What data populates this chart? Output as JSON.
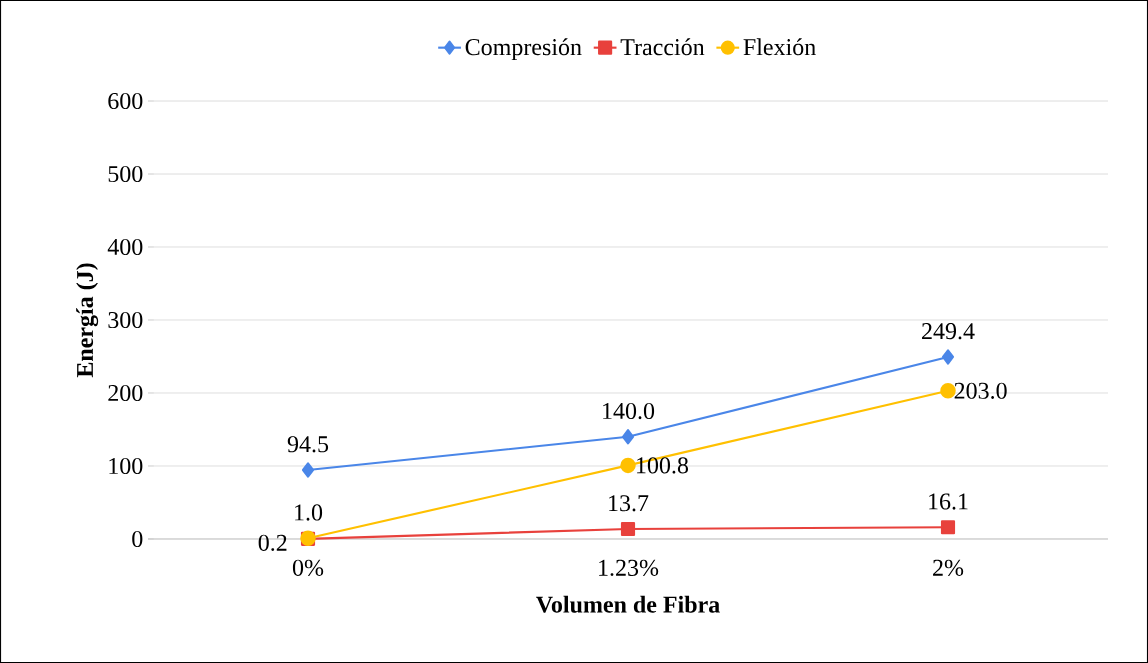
{
  "chart_data": {
    "type": "line",
    "xlabel": "Volumen de Fibra",
    "ylabel": "Energía (J)",
    "categories": [
      "0%",
      "1.23%",
      "2%"
    ],
    "series": [
      {
        "name": "Compresión",
        "color": "#4a86e8",
        "marker": "diamond",
        "values": [
          94.5,
          140.0,
          249.4
        ],
        "value_labels": [
          "94.5",
          "140.0",
          "249.4"
        ]
      },
      {
        "name": "Tracción",
        "color": "#e8413c",
        "marker": "square",
        "values": [
          0.2,
          13.7,
          16.1
        ],
        "value_labels": [
          "0.2",
          "13.7",
          "16.1"
        ]
      },
      {
        "name": "Flexión",
        "color": "#ffc000",
        "marker": "circle",
        "values": [
          1.0,
          100.8,
          203.0
        ],
        "value_labels": [
          "1.0",
          "100.8",
          "203.0"
        ]
      }
    ],
    "ylim": [
      0,
      600
    ],
    "yticks": [
      0,
      100,
      200,
      300,
      400,
      500,
      600
    ],
    "grid": "y",
    "legend": "top"
  }
}
